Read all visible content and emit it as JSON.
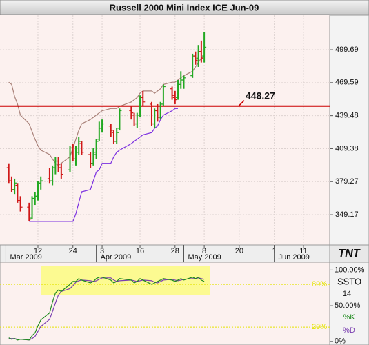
{
  "title": "Russell 2000 Mini Index ICE Jun-09",
  "logo": "TNT",
  "chart_data": [
    {
      "type": "ohlc",
      "x": [
        "2009-03-02",
        "2009-03-03",
        "2009-03-04",
        "2009-03-05",
        "2009-03-06",
        "2009-03-09",
        "2009-03-10",
        "2009-03-11",
        "2009-03-12",
        "2009-03-13",
        "2009-03-16",
        "2009-03-17",
        "2009-03-18",
        "2009-03-19",
        "2009-03-20",
        "2009-03-23",
        "2009-03-24",
        "2009-03-25",
        "2009-03-26",
        "2009-03-27",
        "2009-03-30",
        "2009-03-31",
        "2009-04-01",
        "2009-04-02",
        "2009-04-03",
        "2009-04-06",
        "2009-04-07",
        "2009-04-08",
        "2009-04-09",
        "2009-04-13",
        "2009-04-14",
        "2009-04-15",
        "2009-04-16",
        "2009-04-17",
        "2009-04-20",
        "2009-04-21",
        "2009-04-22",
        "2009-04-23",
        "2009-04-24",
        "2009-04-27",
        "2009-04-28",
        "2009-04-29",
        "2009-04-30",
        "2009-05-01",
        "2009-05-04",
        "2009-05-05",
        "2009-05-06",
        "2009-05-07",
        "2009-05-08"
      ],
      "open": [
        392,
        380,
        372,
        376,
        362,
        356,
        346,
        364,
        366,
        378,
        382,
        380,
        392,
        398,
        392,
        390,
        410,
        400,
        406,
        414,
        404,
        396,
        404,
        418,
        428,
        430,
        424,
        416,
        428,
        444,
        440,
        432,
        440,
        456,
        450,
        432,
        444,
        438,
        450,
        464,
        456,
        456,
        468,
        472,
        476,
        494,
        492,
        498,
        494
      ],
      "high": [
        396,
        384,
        382,
        378,
        366,
        360,
        366,
        370,
        380,
        384,
        392,
        394,
        402,
        402,
        396,
        412,
        414,
        412,
        420,
        416,
        406,
        410,
        418,
        434,
        436,
        432,
        426,
        428,
        446,
        448,
        442,
        442,
        458,
        462,
        452,
        446,
        450,
        452,
        468,
        466,
        462,
        472,
        480,
        476,
        496,
        498,
        504,
        508,
        516
      ],
      "low": [
        378,
        370,
        368,
        360,
        352,
        343,
        345,
        358,
        362,
        372,
        378,
        376,
        386,
        388,
        382,
        388,
        398,
        394,
        404,
        404,
        392,
        394,
        400,
        416,
        424,
        420,
        414,
        414,
        426,
        436,
        430,
        428,
        438,
        448,
        430,
        428,
        434,
        436,
        448,
        454,
        450,
        454,
        464,
        464,
        474,
        486,
        484,
        488,
        488
      ],
      "close": [
        380,
        372,
        378,
        362,
        356,
        345,
        364,
        366,
        378,
        380,
        380,
        392,
        398,
        392,
        386,
        410,
        400,
        406,
        416,
        406,
        396,
        406,
        416,
        428,
        432,
        426,
        416,
        424,
        444,
        442,
        432,
        440,
        456,
        452,
        432,
        444,
        438,
        450,
        466,
        458,
        454,
        468,
        472,
        474,
        494,
        490,
        498,
        492,
        502
      ],
      "up_color": "#22a822",
      "down_color": "#d01818",
      "lines": [
        {
          "color": "#a88078",
          "values": [
            470,
            468,
            457,
            450,
            440,
            432,
            425,
            418,
            412,
            408,
            404,
            400,
            396,
            394,
            396,
            402,
            410,
            418,
            426,
            432,
            436,
            438,
            440,
            442,
            444,
            446,
            446,
            446,
            448,
            452,
            454,
            456,
            460,
            462,
            462,
            460,
            462,
            464,
            468,
            470,
            470,
            472,
            474,
            476,
            480,
            484,
            488,
            492,
            494
          ]
        },
        {
          "color": "#7a2ee0",
          "values": [
            null,
            null,
            null,
            null,
            null,
            343,
            343,
            343,
            343,
            343,
            343,
            343,
            343,
            343,
            343,
            343,
            343,
            350,
            360,
            370,
            372,
            380,
            388,
            390,
            396,
            396,
            402,
            406,
            408,
            414,
            416,
            418,
            420,
            422,
            424,
            428,
            430,
            436,
            440,
            444,
            446,
            446,
            null,
            null,
            null,
            null,
            null,
            null,
            null
          ]
        }
      ],
      "hline": {
        "value": 448.27,
        "color": "#cc0000"
      },
      "xlim": [
        "2009-02-27",
        "2009-06-20"
      ],
      "xticks": [
        {
          "value": "2009-03-12",
          "label": "12"
        },
        {
          "value": "2009-03-24",
          "label": "24"
        },
        {
          "value": "2009-04-03",
          "label": "3"
        },
        {
          "value": "2009-04-16",
          "label": "16"
        },
        {
          "value": "2009-04-28",
          "label": "28"
        },
        {
          "value": "2009-05-08",
          "label": "8"
        },
        {
          "value": "2009-05-20",
          "label": "20"
        },
        {
          "value": "2009-06-01",
          "label": "1"
        },
        {
          "value": "2009-06-11",
          "label": "11"
        }
      ],
      "month_ticks": [
        {
          "value": "2009-03-01",
          "label": "Mar 2009"
        },
        {
          "value": "2009-04-01",
          "label": "Apr 2009"
        },
        {
          "value": "2009-05-01",
          "label": "May 2009"
        },
        {
          "value": "2009-06-01",
          "label": "Jun 2009"
        }
      ],
      "ylim": [
        321.5,
        531.2
      ],
      "yticks": [
        499.69,
        469.59,
        439.48,
        409.38,
        379.27,
        349.17
      ],
      "grid": true
    },
    {
      "type": "line",
      "title": "SSTO",
      "period": 14,
      "series": [
        {
          "name": "%K",
          "color": "#1f8a1f",
          "values": [
            5,
            3,
            4,
            2,
            3,
            2,
            8,
            12,
            22,
            30,
            40,
            55,
            68,
            72,
            70,
            80,
            84,
            84,
            88,
            86,
            82,
            84,
            88,
            90,
            90,
            86,
            82,
            84,
            88,
            86,
            82,
            84,
            88,
            86,
            80,
            82,
            84,
            86,
            88,
            86,
            84,
            86,
            88,
            86,
            90,
            88,
            90,
            86,
            84
          ]
        },
        {
          "name": "%D",
          "color": "#7a3fb0",
          "values": [
            4,
            4,
            4,
            3,
            3,
            2,
            4,
            7,
            14,
            21,
            31,
            42,
            54,
            65,
            70,
            74,
            78,
            83,
            85,
            86,
            85,
            84,
            85,
            87,
            89,
            89,
            86,
            84,
            85,
            86,
            85,
            84,
            85,
            86,
            85,
            83,
            82,
            84,
            86,
            87,
            86,
            85,
            86,
            87,
            88,
            88,
            89,
            88,
            87
          ]
        }
      ],
      "levels": [
        {
          "value": 80,
          "label": "80%"
        },
        {
          "value": 20,
          "label": "20%"
        }
      ],
      "level_color": "#e4e400",
      "ylim": [
        -5,
        111
      ],
      "yticks": [
        {
          "value": 100,
          "label": "100.00%"
        },
        {
          "value": 50,
          "label": "50.00%"
        },
        {
          "value": 0,
          "label": "0%"
        }
      ]
    }
  ]
}
